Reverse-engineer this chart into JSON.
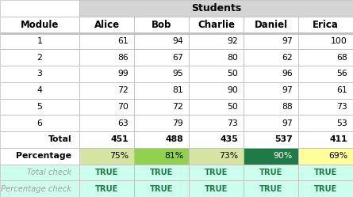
{
  "students_header": "Students",
  "col_headers": [
    "Module",
    "Alice",
    "Bob",
    "Charlie",
    "Daniel",
    "Erica"
  ],
  "module_rows": [
    [
      "1",
      "61",
      "94",
      "92",
      "97",
      "100"
    ],
    [
      "2",
      "86",
      "67",
      "80",
      "62",
      "68"
    ],
    [
      "3",
      "99",
      "95",
      "50",
      "96",
      "56"
    ],
    [
      "4",
      "72",
      "81",
      "90",
      "97",
      "61"
    ],
    [
      "5",
      "70",
      "72",
      "50",
      "88",
      "73"
    ],
    [
      "6",
      "63",
      "79",
      "73",
      "97",
      "53"
    ]
  ],
  "total_row": [
    "Total",
    "451",
    "488",
    "435",
    "537",
    "411"
  ],
  "percentage_row": [
    "Percentage",
    "75%",
    "81%",
    "73%",
    "90%",
    "69%"
  ],
  "percentage_bg_colors": [
    "#d6e4a1",
    "#92d050",
    "#d6e4a1",
    "#1e7b45",
    "#ffff99"
  ],
  "percentage_text_colors": [
    "#000000",
    "#000000",
    "#000000",
    "#ffffff",
    "#000000"
  ],
  "total_check_row": [
    "Total check",
    "TRUE",
    "TRUE",
    "TRUE",
    "TRUE",
    "TRUE"
  ],
  "percentage_check_row": [
    "Percentage check",
    "TRUE",
    "TRUE",
    "TRUE",
    "TRUE",
    "TRUE"
  ],
  "check_bg": "#ccffee",
  "check_text_color": "#1e7b45",
  "check_label_color": "#a0a0a0",
  "students_header_bg": "#d4d4d4",
  "grid_color": "#bfbfbf",
  "n_rows": 12,
  "col_widths_ratio": [
    1.45,
    1.0,
    1.0,
    1.0,
    1.0,
    1.0
  ],
  "data_fontsize": 7.8,
  "header_fontsize": 8.5,
  "students_fontsize": 9.0,
  "check_fontsize": 7.2
}
